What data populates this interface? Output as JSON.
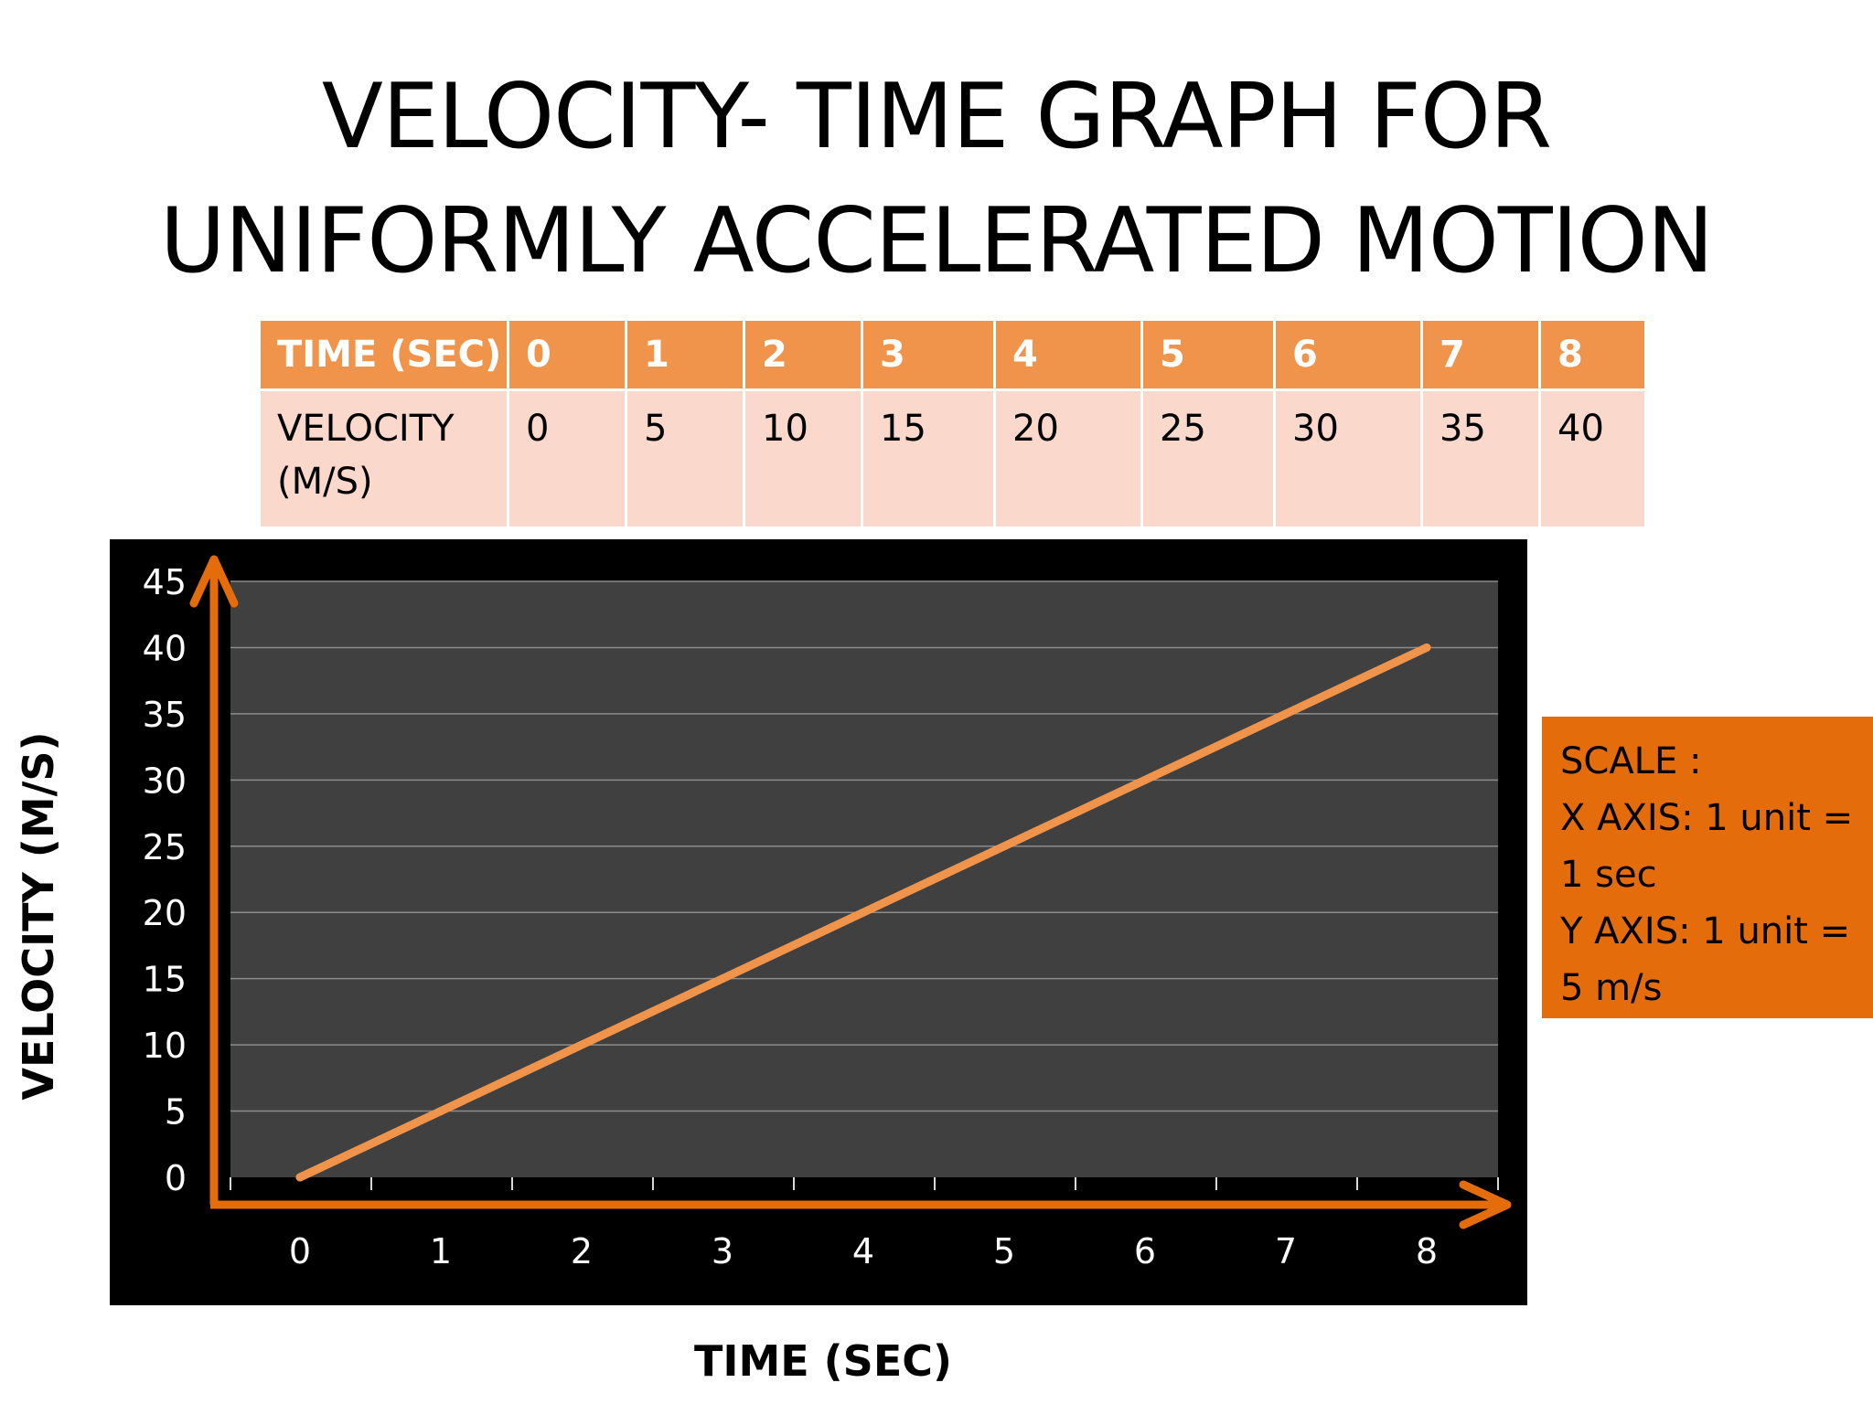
{
  "title": {
    "line1": "VELOCITY- TIME GRAPH FOR",
    "line2": "UNIFORMLY ACCELERATED MOTION"
  },
  "table": {
    "header_label": "TIME (SEC)",
    "row_label": "VELOCITY (M/S)",
    "times": [
      "0",
      "1",
      "2",
      "3",
      "4",
      "5",
      "6",
      "7",
      "8"
    ],
    "velocities": [
      "0",
      "5",
      "10",
      "15",
      "20",
      "25",
      "30",
      "35",
      "40"
    ]
  },
  "scale": {
    "heading": "SCALE :",
    "x_line1": "X AXIS: 1 unit =",
    "x_line2": "1 sec",
    "y_line1": "Y AXIS: 1 unit =",
    "y_line2": "5 m/s"
  },
  "colors": {
    "line": "#f0944b",
    "axis_arrow": "#e46c0a",
    "plot_bg": "#404040",
    "chart_bg": "#000000",
    "gridline": "#8c8c8c"
  },
  "chart_data": {
    "type": "line",
    "x": [
      0,
      1,
      2,
      3,
      4,
      5,
      6,
      7,
      8
    ],
    "series": [
      {
        "values": [
          0,
          5,
          10,
          15,
          20,
          25,
          30,
          35,
          40
        ]
      }
    ],
    "x_ticks": [
      "0",
      "1",
      "2",
      "3",
      "4",
      "5",
      "6",
      "7",
      "8"
    ],
    "y_ticks": [
      "0",
      "5",
      "10",
      "15",
      "20",
      "25",
      "30",
      "35",
      "40",
      "45"
    ],
    "xlabel": "TIME (SEC)",
    "ylabel": "VELOCITY (M/S)",
    "ylim": [
      0,
      45
    ],
    "grid": true
  }
}
